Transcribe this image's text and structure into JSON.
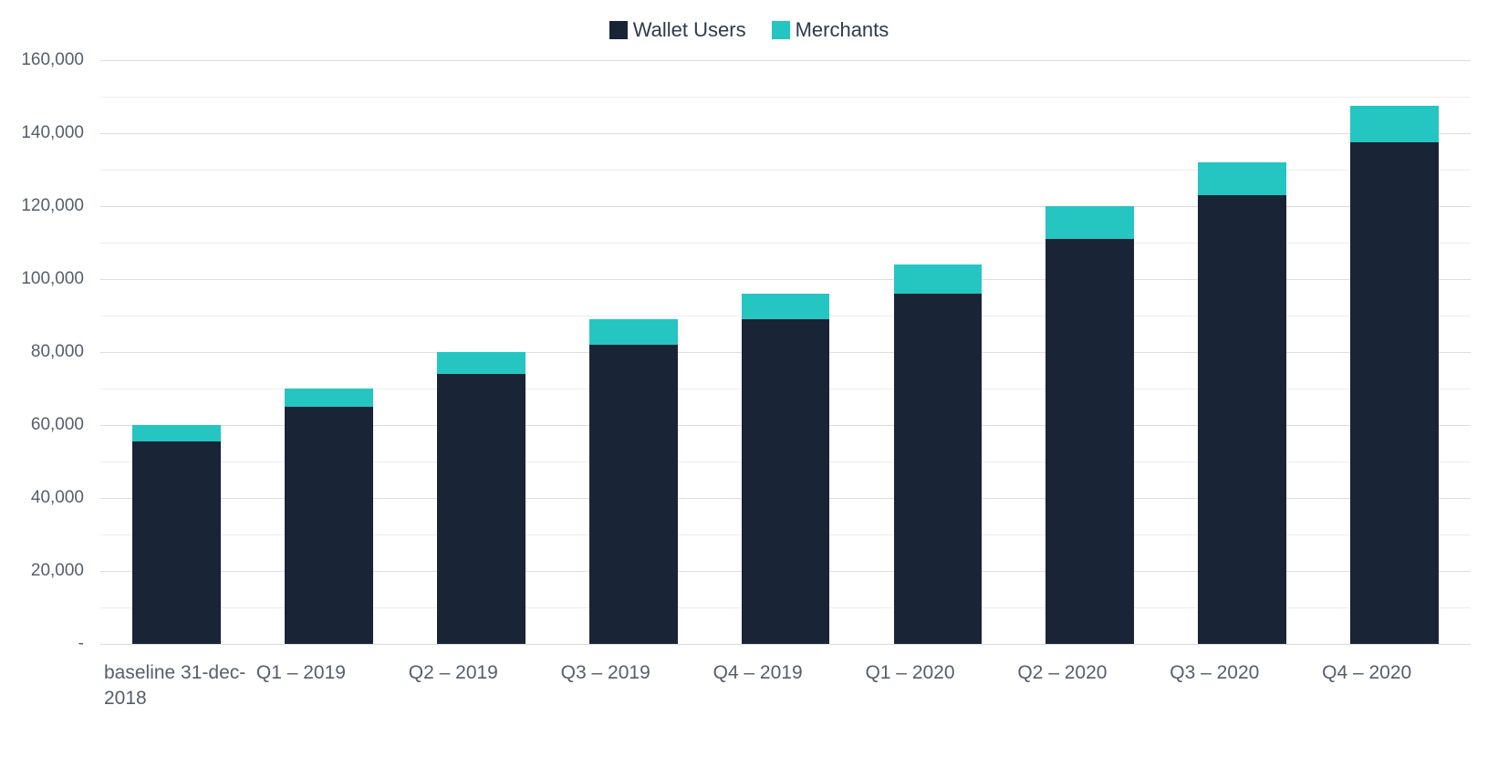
{
  "chart": {
    "type": "stacked-bar",
    "background_color": "#ffffff",
    "font_family": "-apple-system, Segoe UI, Helvetica, Arial, sans-serif",
    "legend": {
      "position": "top-center",
      "items": [
        {
          "label": "Wallet Users",
          "color": "#1a2437"
        },
        {
          "label": "Merchants",
          "color": "#25c5c2"
        }
      ],
      "fontsize": 22,
      "text_color": "#2e3a4d"
    },
    "y_axis": {
      "min": 0,
      "max": 160000,
      "tick_step_major": 20000,
      "tick_step_minor": 10000,
      "ticks": [
        {
          "value": 0,
          "label": " -"
        },
        {
          "value": 20000,
          "label": " 20,000"
        },
        {
          "value": 40000,
          "label": " 40,000"
        },
        {
          "value": 60000,
          "label": " 60,000"
        },
        {
          "value": 80000,
          "label": " 80,000"
        },
        {
          "value": 100000,
          "label": " 100,000"
        },
        {
          "value": 120000,
          "label": " 120,000"
        },
        {
          "value": 140000,
          "label": " 140,000"
        },
        {
          "value": 160000,
          "label": " 160,000"
        }
      ],
      "label_fontsize": 19,
      "label_color": "#555e6c",
      "grid_color_major": "#dcdde0",
      "grid_color_minor": "#eceded"
    },
    "x_axis": {
      "labels": [
        "baseline 31-dec-2018",
        "Q1 – 2019",
        "Q2 – 2019",
        "Q3 – 2019",
        "Q4 – 2019",
        "Q1 – 2020",
        "Q2 – 2020",
        "Q3 – 2020",
        "Q4 – 2020"
      ],
      "label_fontsize": 21,
      "label_color": "#555e6c"
    },
    "series": [
      {
        "name": "Wallet Users",
        "color": "#1a2437",
        "values": [
          55500,
          65000,
          74000,
          82000,
          89000,
          96000,
          111000,
          123000,
          137500
        ]
      },
      {
        "name": "Merchants",
        "color": "#25c5c2",
        "values": [
          4500,
          5000,
          6000,
          7000,
          7000,
          8000,
          9000,
          9000,
          10000
        ]
      }
    ],
    "bar_width_ratio": 0.58
  }
}
